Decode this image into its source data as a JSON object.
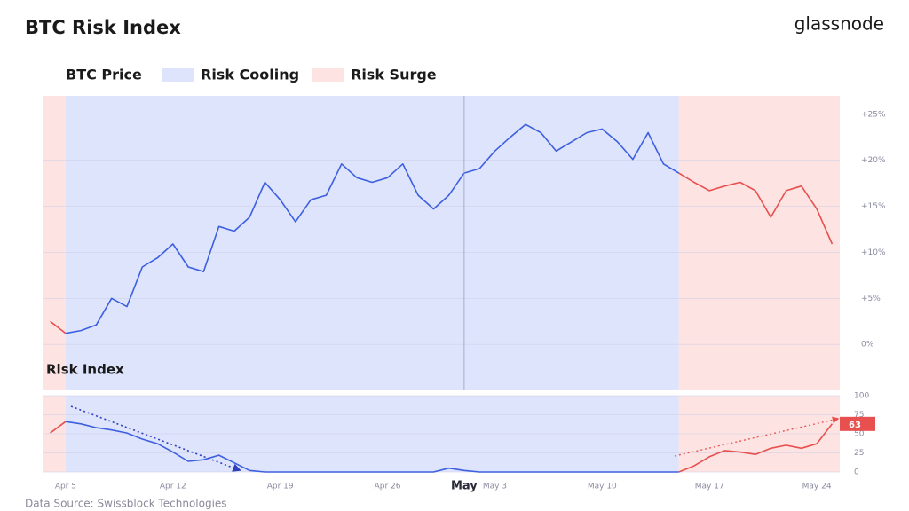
{
  "header": {
    "title": "BTC Risk Index",
    "brand": "glassnode"
  },
  "footer": {
    "source": "Data Source: Swissblock Technologies"
  },
  "chart_data": [
    {
      "type": "line",
      "categories": [
        "Apr 4",
        "Apr 5",
        "Apr 6",
        "Apr 7",
        "Apr 8",
        "Apr 9",
        "Apr 10",
        "Apr 11",
        "Apr 12",
        "Apr 13",
        "Apr 14",
        "Apr 15",
        "Apr 16",
        "Apr 17",
        "Apr 18",
        "Apr 19",
        "Apr 20",
        "Apr 21",
        "Apr 22",
        "Apr 23",
        "Apr 24",
        "Apr 25",
        "Apr 26",
        "Apr 27",
        "Apr 28",
        "Apr 29",
        "Apr 30",
        "May 1",
        "May 2",
        "May 3",
        "May 4",
        "May 5",
        "May 6",
        "May 7",
        "May 8",
        "May 9",
        "May 10",
        "May 11",
        "May 12",
        "May 13",
        "May 14",
        "May 15",
        "May 16",
        "May 17",
        "May 18",
        "May 19",
        "May 20",
        "May 21",
        "May 22",
        "May 23",
        "May 24",
        "May 25"
      ],
      "series": [
        {
          "name": "BTC Price",
          "values": [
            2.5,
            1.2,
            1.5,
            2.1,
            5.0,
            4.1,
            8.4,
            9.4,
            10.9,
            8.4,
            7.9,
            12.8,
            12.3,
            13.8,
            17.6,
            15.7,
            13.3,
            15.7,
            16.2,
            19.6,
            18.1,
            17.6,
            18.1,
            19.6,
            16.2,
            14.7,
            16.2,
            18.6,
            19.1,
            21.0,
            22.5,
            23.9,
            23.0,
            21.0,
            22.0,
            23.0,
            23.4,
            22.0,
            20.1,
            23.0,
            19.6,
            18.6,
            17.6,
            16.7,
            17.2,
            17.6,
            16.7,
            13.8,
            16.7,
            17.2,
            14.7,
            10.9
          ]
        }
      ],
      "regions": [
        {
          "name": "Risk Surge",
          "from": "Apr 4",
          "to": "Apr 5",
          "color": "#fde3e1",
          "line_color": "#e8504f"
        },
        {
          "name": "Risk Cooling",
          "from": "Apr 5",
          "to": "May 15",
          "color": "#dee4fb",
          "line_color": "#3d5fe0"
        },
        {
          "name": "Risk Surge",
          "from": "May 15",
          "to": "May 25",
          "color": "#fde3e1",
          "line_color": "#e8504f"
        }
      ],
      "ylim": [
        -5,
        27
      ],
      "yticks": [
        {
          "value": 0,
          "label": "0%"
        },
        {
          "value": 5,
          "label": "+5%"
        },
        {
          "value": 10,
          "label": "+10%"
        },
        {
          "value": 15,
          "label": "+15%"
        },
        {
          "value": 20,
          "label": "+20%"
        },
        {
          "value": 25,
          "label": "+25%"
        }
      ],
      "grid": true
    },
    {
      "type": "line",
      "title": "Risk Index",
      "categories": [
        "Apr 4",
        "Apr 5",
        "Apr 6",
        "Apr 7",
        "Apr 8",
        "Apr 9",
        "Apr 10",
        "Apr 11",
        "Apr 12",
        "Apr 13",
        "Apr 14",
        "Apr 15",
        "Apr 16",
        "Apr 17",
        "Apr 18",
        "Apr 19",
        "Apr 20",
        "Apr 21",
        "Apr 22",
        "Apr 23",
        "Apr 24",
        "Apr 25",
        "Apr 26",
        "Apr 27",
        "Apr 28",
        "Apr 29",
        "Apr 30",
        "May 1",
        "May 2",
        "May 3",
        "May 4",
        "May 5",
        "May 6",
        "May 7",
        "May 8",
        "May 9",
        "May 10",
        "May 11",
        "May 12",
        "May 13",
        "May 14",
        "May 15",
        "May 16",
        "May 17",
        "May 18",
        "May 19",
        "May 20",
        "May 21",
        "May 22",
        "May 23",
        "May 24",
        "May 25"
      ],
      "series": [
        {
          "name": "Risk Index",
          "values": [
            51,
            66,
            63,
            58,
            55,
            51,
            43,
            37,
            26,
            14,
            16,
            22,
            12,
            2,
            0,
            0,
            0,
            0,
            0,
            0,
            0,
            0,
            0,
            0,
            0,
            0,
            5,
            2,
            0,
            0,
            0,
            0,
            0,
            0,
            0,
            0,
            0,
            0,
            0,
            0,
            0,
            0,
            8,
            20,
            28,
            26,
            23,
            31,
            35,
            31,
            37,
            63
          ]
        }
      ],
      "ylim": [
        0,
        100
      ],
      "yticks": [
        0,
        25,
        50,
        75,
        100
      ],
      "xticks": [
        "Apr 5",
        "Apr 12",
        "Apr 19",
        "Apr 26",
        {
          "value": "May 1",
          "label": "May"
        },
        "May 3",
        "May 10",
        "May 17",
        "May 24"
      ],
      "grid": true
    }
  ]
}
